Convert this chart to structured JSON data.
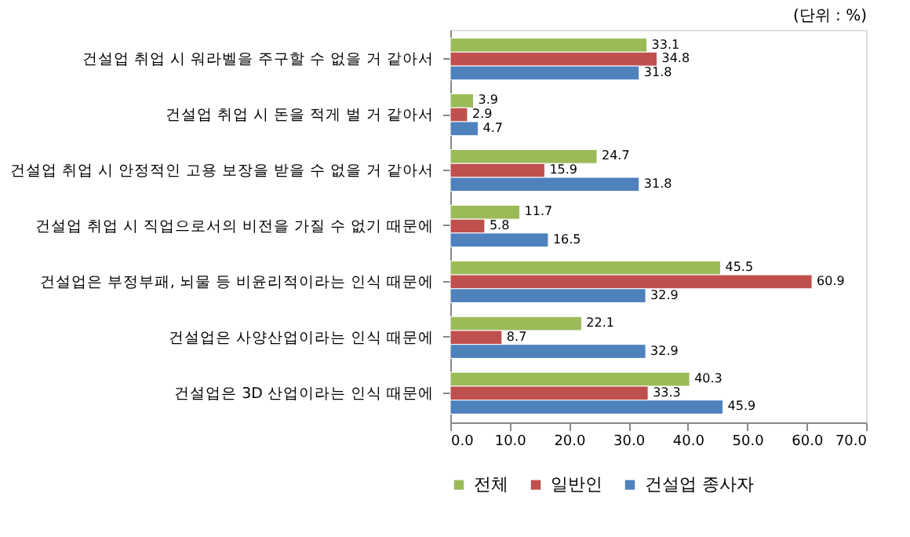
{
  "chart_data": {
    "type": "bar",
    "orientation": "horizontal",
    "annotations": [
      "(단위 : %)"
    ],
    "categories": [
      "건설업 취업 시 워라벨을 주구할 수 없을 거 같아서",
      "건설업 취업 시 돈을 적게 벌 거 같아서",
      "건설업 취업 시 안정적인 고용 보장을 받을 수 없을 거 같아서",
      "건설업 취업 시 직업으로서의 비전을 가질 수 없기 때문에",
      "건설업은 부정부패, 뇌물 등 비윤리적이라는 인식 때문에",
      "건설업은 사양산업이라는  인식 때문에",
      "건설업은 3D 산업이라는 인식 때문에"
    ],
    "series": [
      {
        "name": "전체",
        "color": "#9bbb59",
        "values": [
          33.1,
          3.9,
          24.7,
          11.7,
          45.5,
          22.1,
          40.3
        ]
      },
      {
        "name": "일반인",
        "color": "#c0504d",
        "values": [
          34.8,
          2.9,
          15.9,
          5.8,
          60.9,
          8.7,
          33.3
        ]
      },
      {
        "name": "건설업 종사자",
        "color": "#4f81bd",
        "values": [
          31.8,
          4.7,
          31.8,
          16.5,
          32.9,
          32.9,
          45.9
        ]
      }
    ],
    "xlim": [
      0,
      70
    ],
    "xticks": [
      {
        "value": 0,
        "label": "0.0"
      },
      {
        "value": 10,
        "label": "10.0"
      },
      {
        "value": 20,
        "label": "20.0"
      },
      {
        "value": 30,
        "label": "30.0"
      },
      {
        "value": 40,
        "label": "40.0"
      },
      {
        "value": 50,
        "label": "50.0"
      },
      {
        "value": 60,
        "label": "60.0"
      },
      {
        "value": 70,
        "label": "70.0"
      }
    ],
    "data_labels": true,
    "grid": false,
    "legend": "bottom"
  }
}
